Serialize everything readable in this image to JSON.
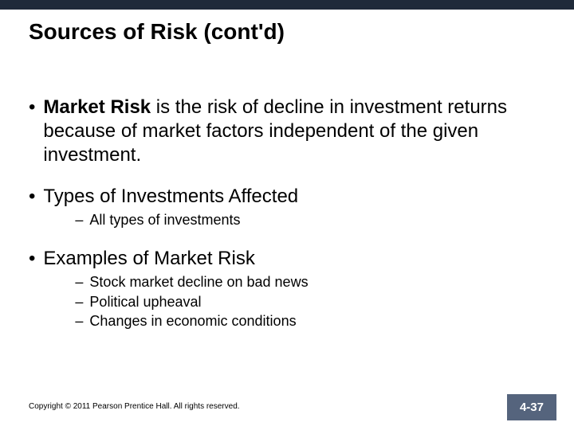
{
  "colors": {
    "top_bar": "#1f2a3a",
    "page_box": "#55647d",
    "text": "#000000",
    "background": "#ffffff"
  },
  "title": "Sources of Risk (cont'd)",
  "bullets": [
    {
      "prefix_bold": "Market Risk",
      "text_rest": " is the risk of decline in investment returns because of market factors independent of the given investment.",
      "subs": []
    },
    {
      "text": "Types of Investments Affected",
      "subs": [
        "All types of investments"
      ]
    },
    {
      "text": "Examples of Market Risk",
      "subs": [
        "Stock market decline on bad news",
        "Political upheaval",
        "Changes in economic conditions"
      ]
    }
  ],
  "footer": "Copyright © 2011 Pearson Prentice Hall. All rights reserved.",
  "page_number": "4-37"
}
